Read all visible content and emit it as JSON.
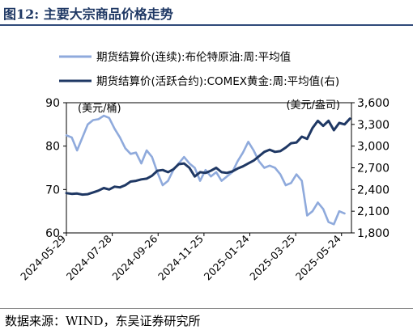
{
  "title": "图12:  主要大宗商品价格走势",
  "source": "数据来源：WIND，东吴证券研究所",
  "chart_data": {
    "type": "line",
    "left_axis": {
      "unit": "(美元/桶)",
      "ylim": [
        60,
        90
      ],
      "ticks": [
        60,
        70,
        80,
        90
      ]
    },
    "right_axis": {
      "unit": "(美元/盎司)",
      "ylim": [
        1800,
        3600
      ],
      "ticks": [
        "1,800",
        "2,100",
        "2,400",
        "2,700",
        "3,000",
        "3,300",
        "3,600"
      ],
      "tick_values": [
        1800,
        2100,
        2400,
        2700,
        3000,
        3300,
        3600
      ]
    },
    "x_ticks": [
      "2024-05-29",
      "2024-07-28",
      "2024-09-26",
      "2024-11-25",
      "2025-01-24",
      "2025-03-25",
      "2025-05-24"
    ],
    "x_range": [
      "2024-05-29",
      "2025-06-06"
    ],
    "legend_position": "top",
    "colors": {
      "brent": "#8faadc",
      "comex": "#1f3864"
    },
    "series": [
      {
        "name": "期货结算价(连续):布伦特原油:周:平均值",
        "axis": "left",
        "color": "#8faadc",
        "points": [
          [
            "2024-05-29",
            82.5
          ],
          [
            "2024-06-05",
            82.0
          ],
          [
            "2024-06-12",
            79.0
          ],
          [
            "2024-06-19",
            82.0
          ],
          [
            "2024-06-26",
            85.0
          ],
          [
            "2024-07-03",
            86.0
          ],
          [
            "2024-07-10",
            86.2
          ],
          [
            "2024-07-17",
            87.0
          ],
          [
            "2024-07-24",
            86.5
          ],
          [
            "2024-07-31",
            84.0
          ],
          [
            "2024-08-07",
            82.0
          ],
          [
            "2024-08-14",
            79.5
          ],
          [
            "2024-08-21",
            78.2
          ],
          [
            "2024-08-28",
            78.5
          ],
          [
            "2024-09-04",
            76.0
          ],
          [
            "2024-09-11",
            79.0
          ],
          [
            "2024-09-18",
            77.5
          ],
          [
            "2024-09-25",
            74.0
          ],
          [
            "2024-10-02",
            71.0
          ],
          [
            "2024-10-09",
            72.0
          ],
          [
            "2024-10-16",
            74.5
          ],
          [
            "2024-10-23",
            76.0
          ],
          [
            "2024-10-30",
            77.5
          ],
          [
            "2024-11-06",
            76.0
          ],
          [
            "2024-11-13",
            75.0
          ],
          [
            "2024-11-20",
            72.0
          ],
          [
            "2024-11-27",
            74.5
          ],
          [
            "2024-12-04",
            73.0
          ],
          [
            "2024-12-11",
            74.0
          ],
          [
            "2024-12-18",
            72.0
          ],
          [
            "2024-12-25",
            73.0
          ],
          [
            "2025-01-01",
            74.0
          ],
          [
            "2025-01-08",
            76.5
          ],
          [
            "2025-01-15",
            78.5
          ],
          [
            "2025-01-22",
            81.0
          ],
          [
            "2025-01-29",
            79.0
          ],
          [
            "2025-02-05",
            76.5
          ],
          [
            "2025-02-12",
            75.0
          ],
          [
            "2025-02-19",
            75.5
          ],
          [
            "2025-02-26",
            75.0
          ],
          [
            "2025-03-05",
            73.5
          ],
          [
            "2025-03-12",
            71.0
          ],
          [
            "2025-03-19",
            71.5
          ],
          [
            "2025-03-26",
            73.5
          ],
          [
            "2025-04-02",
            72.0
          ],
          [
            "2025-04-09",
            64.0
          ],
          [
            "2025-04-16",
            65.0
          ],
          [
            "2025-04-23",
            67.0
          ],
          [
            "2025-04-30",
            65.5
          ],
          [
            "2025-05-07",
            62.5
          ],
          [
            "2025-05-14",
            62.0
          ],
          [
            "2025-05-21",
            65.0
          ],
          [
            "2025-05-28",
            64.5
          ]
        ]
      },
      {
        "name": "期货结算价(活跃合约):COMEX黄金:周:平均值(右)",
        "axis": "right",
        "color": "#1f3864",
        "points": [
          [
            "2024-05-29",
            2350
          ],
          [
            "2024-06-05",
            2340
          ],
          [
            "2024-06-12",
            2345
          ],
          [
            "2024-06-19",
            2330
          ],
          [
            "2024-06-26",
            2335
          ],
          [
            "2024-07-03",
            2360
          ],
          [
            "2024-07-10",
            2385
          ],
          [
            "2024-07-17",
            2420
          ],
          [
            "2024-07-24",
            2400
          ],
          [
            "2024-07-31",
            2440
          ],
          [
            "2024-08-07",
            2430
          ],
          [
            "2024-08-14",
            2460
          ],
          [
            "2024-08-21",
            2510
          ],
          [
            "2024-08-28",
            2520
          ],
          [
            "2024-09-04",
            2540
          ],
          [
            "2024-09-11",
            2550
          ],
          [
            "2024-09-18",
            2590
          ],
          [
            "2024-09-25",
            2660
          ],
          [
            "2024-10-02",
            2670
          ],
          [
            "2024-10-09",
            2640
          ],
          [
            "2024-10-16",
            2680
          ],
          [
            "2024-10-23",
            2750
          ],
          [
            "2024-10-30",
            2760
          ],
          [
            "2024-11-06",
            2700
          ],
          [
            "2024-11-13",
            2580
          ],
          [
            "2024-11-20",
            2640
          ],
          [
            "2024-11-27",
            2630
          ],
          [
            "2024-12-04",
            2660
          ],
          [
            "2024-12-11",
            2700
          ],
          [
            "2024-12-18",
            2640
          ],
          [
            "2024-12-25",
            2630
          ],
          [
            "2025-01-01",
            2650
          ],
          [
            "2025-01-08",
            2690
          ],
          [
            "2025-01-15",
            2720
          ],
          [
            "2025-01-22",
            2760
          ],
          [
            "2025-01-29",
            2800
          ],
          [
            "2025-02-05",
            2860
          ],
          [
            "2025-02-12",
            2920
          ],
          [
            "2025-02-19",
            2950
          ],
          [
            "2025-02-26",
            2920
          ],
          [
            "2025-03-05",
            2930
          ],
          [
            "2025-03-12",
            2980
          ],
          [
            "2025-03-19",
            3040
          ],
          [
            "2025-03-26",
            3050
          ],
          [
            "2025-04-02",
            3130
          ],
          [
            "2025-04-09",
            3100
          ],
          [
            "2025-04-16",
            3250
          ],
          [
            "2025-04-23",
            3350
          ],
          [
            "2025-04-30",
            3280
          ],
          [
            "2025-05-07",
            3350
          ],
          [
            "2025-05-14",
            3220
          ],
          [
            "2025-05-21",
            3320
          ],
          [
            "2025-05-28",
            3300
          ],
          [
            "2025-06-04",
            3380
          ]
        ]
      }
    ]
  }
}
